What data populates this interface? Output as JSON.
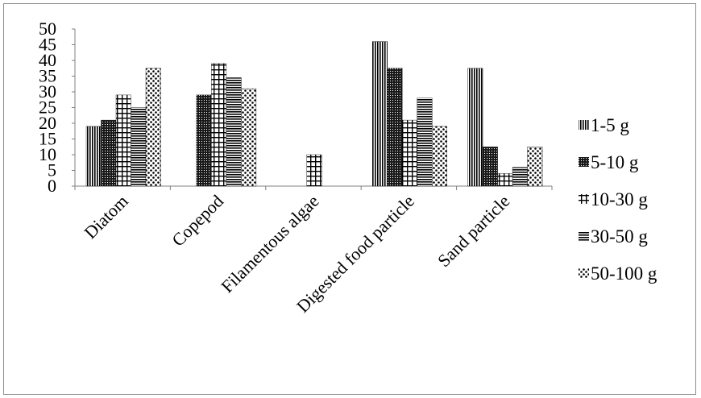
{
  "chart_data": {
    "type": "bar",
    "title": "",
    "xlabel": "",
    "ylabel": "",
    "ylim": [
      0,
      50
    ],
    "yticks": [
      0,
      5,
      10,
      15,
      20,
      25,
      30,
      35,
      40,
      45,
      50
    ],
    "grid": false,
    "legend_position": "right",
    "categories": [
      "Diatom",
      "Copepod",
      "Filamentous algae",
      "Digested food particle",
      "Sand particle"
    ],
    "series": [
      {
        "name": "1-5 g",
        "pattern": "vertical-lines",
        "values": [
          19,
          0,
          0,
          46,
          37.5
        ]
      },
      {
        "name": "5-10 g",
        "pattern": "dense-dark",
        "values": [
          21,
          29,
          0,
          37.5,
          12.5
        ]
      },
      {
        "name": "10-30 g",
        "pattern": "grid",
        "values": [
          29,
          39,
          10,
          21,
          4
        ]
      },
      {
        "name": "30-50 g",
        "pattern": "horizontal-lines",
        "values": [
          25,
          34.5,
          0,
          28,
          6
        ]
      },
      {
        "name": "50-100 g",
        "pattern": "dots",
        "values": [
          37.5,
          31,
          0,
          19,
          12.5
        ]
      }
    ]
  }
}
